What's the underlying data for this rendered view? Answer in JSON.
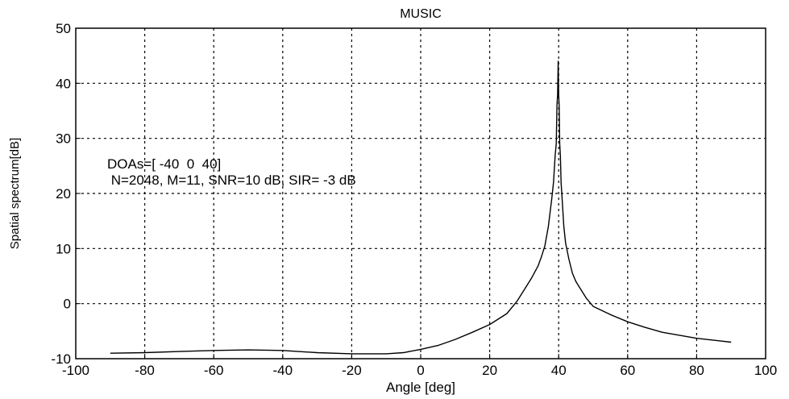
{
  "chart_data": {
    "type": "line",
    "title": "MUSIC",
    "xlabel": "Angle [deg]",
    "ylabel": "Spatial spectrum[dB]",
    "xlim": [
      -100,
      100
    ],
    "ylim": [
      -10,
      50
    ],
    "xticks": [
      -100,
      -80,
      -60,
      -40,
      -20,
      0,
      20,
      40,
      60,
      80,
      100
    ],
    "yticks": [
      -10,
      0,
      10,
      20,
      30,
      40,
      50
    ],
    "grid": true,
    "annotations": [
      "DOAs=[ -40  0  40]",
      " N=2048, M=11, SNR=10 dB, SIR= -3 dB"
    ],
    "series": [
      {
        "color": "#000000",
        "x": [
          -90,
          -80,
          -70,
          -60,
          -50,
          -40,
          -30,
          -20,
          -10,
          -5,
          0,
          5,
          10,
          15,
          20,
          25,
          28,
          30,
          32,
          34,
          35,
          36,
          37,
          38,
          38.5,
          39,
          39.3,
          39.5,
          39.7,
          39.85,
          40,
          40.15,
          40.3,
          40.5,
          40.7,
          41,
          41.5,
          42,
          43,
          44,
          45,
          46,
          48,
          50,
          55,
          60,
          65,
          70,
          80,
          90
        ],
        "y": [
          -9,
          -8.9,
          -8.7,
          -8.5,
          -8.4,
          -8.5,
          -8.9,
          -9.1,
          -9.1,
          -8.9,
          -8.3,
          -7.6,
          -6.5,
          -5.2,
          -3.8,
          -1.8,
          0.5,
          2.5,
          4.5,
          6.8,
          8.5,
          10.5,
          14,
          19,
          22,
          27,
          29,
          36,
          38,
          44,
          38,
          36,
          29,
          27,
          22,
          19,
          14,
          11,
          8,
          5.5,
          4,
          3,
          1,
          -0.5,
          -2,
          -3.3,
          -4.3,
          -5.2,
          -6.3,
          -7
        ]
      }
    ]
  }
}
